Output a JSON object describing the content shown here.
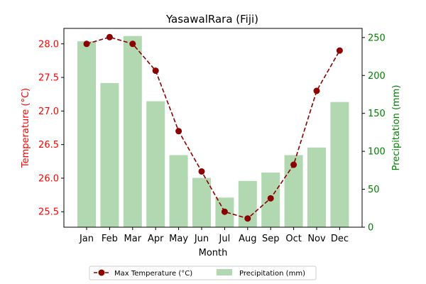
{
  "chart_data": {
    "type": "bar+line",
    "title": "YasawalRara (Fiji)",
    "xlabel": "Month",
    "categories": [
      "Jan",
      "Feb",
      "Mar",
      "Apr",
      "May",
      "Jun",
      "Jul",
      "Aug",
      "Sep",
      "Oct",
      "Nov",
      "Dec"
    ],
    "temperature": {
      "name": "Max Temperature (°C)",
      "axis_label": "Temperature (°C)",
      "values": [
        28.0,
        28.1,
        28.0,
        27.6,
        26.7,
        26.1,
        25.5,
        25.4,
        25.7,
        26.2,
        27.3,
        27.9
      ],
      "ylim": [
        25.27,
        28.23
      ],
      "ticks": [
        25.5,
        26.0,
        26.5,
        27.0,
        27.5,
        28.0
      ],
      "tick_labels": [
        "25.5",
        "26.0",
        "26.5",
        "27.0",
        "27.5",
        "28.0"
      ],
      "color": "#8b0000",
      "axis_color": "#ff0000"
    },
    "precipitation": {
      "name": "Precipitation (mm)",
      "axis_label": "Precipitation (mm)",
      "values": [
        245,
        190,
        252,
        166,
        95,
        65,
        39,
        61,
        72,
        95,
        105,
        165
      ],
      "ylim": [
        0,
        262
      ],
      "ticks": [
        0,
        50,
        100,
        150,
        200,
        250
      ],
      "tick_labels": [
        "0",
        "50",
        "100",
        "150",
        "200",
        "250"
      ],
      "color": "#b2d8b2",
      "axis_color": "#008000"
    },
    "legend": {
      "placement": "bottom-center",
      "entries": [
        "Max Temperature (°C)",
        "Precipitation (mm)"
      ]
    },
    "grid": false
  }
}
